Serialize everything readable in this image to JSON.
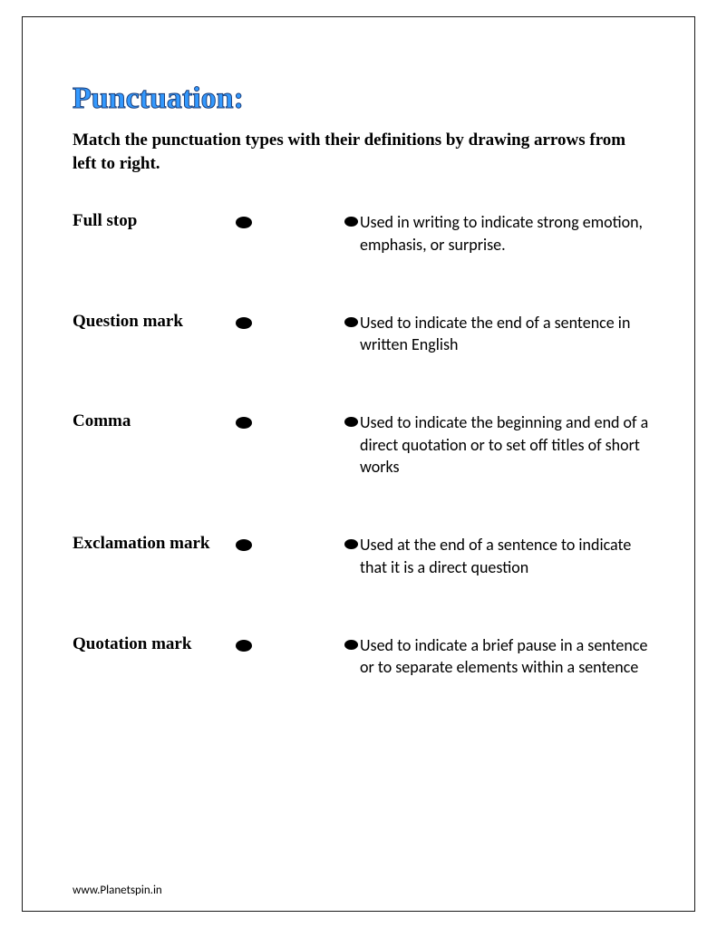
{
  "title": "Punctuation:",
  "instructions": "Match the punctuation types with their definitions by drawing arrows from left to right.",
  "items": [
    {
      "term": "Full stop",
      "definition": "Used in writing to indicate strong emotion, emphasis, or surprise."
    },
    {
      "term": "Question mark",
      "definition": "Used to indicate the end of a sentence in written English"
    },
    {
      "term": "Comma",
      "definition": "Used to indicate the beginning and end of a direct quotation or to set off titles of short works"
    },
    {
      "term": "Exclamation mark",
      "definition": "Used at the end of a sentence to indicate that it is a direct question"
    },
    {
      "term": "Quotation mark",
      "definition": "Used to indicate a brief pause in a sentence or to separate elements within a sentence"
    }
  ],
  "footer": "www.Planetspin.in",
  "colors": {
    "title": "#3399ff",
    "title_stroke": "#1c3f7a",
    "text": "#000000",
    "border": "#1a1a1a",
    "background": "#ffffff"
  }
}
